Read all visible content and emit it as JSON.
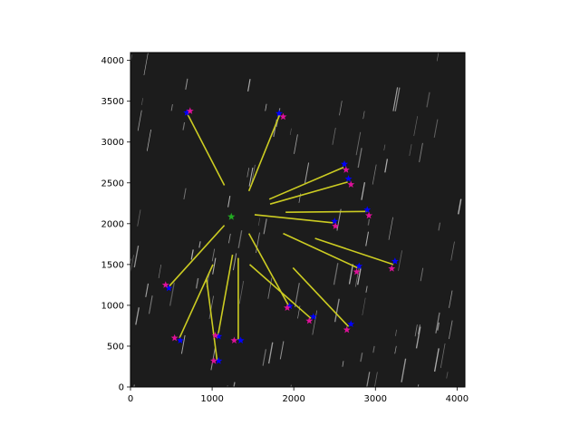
{
  "chart_data": {
    "type": "scatter",
    "title": "",
    "xlabel": "",
    "ylabel": "",
    "xlim": [
      0,
      4096
    ],
    "ylim": [
      0,
      4096
    ],
    "x_ticks": [
      0,
      1000,
      2000,
      3000,
      4000
    ],
    "y_ticks": [
      0,
      500,
      1000,
      1500,
      2000,
      2500,
      3000,
      3500,
      4000
    ],
    "grid": false,
    "legend": "none",
    "background": "#1c1c1c",
    "center": {
      "x": 1235,
      "y": 2085,
      "marker": "star",
      "color": "#22aa22"
    },
    "series": [
      {
        "marker": "star",
        "color": "#0000ff",
        "points": [
          {
            "x": 690,
            "y": 3360
          },
          {
            "x": 1820,
            "y": 3350
          },
          {
            "x": 2620,
            "y": 2730
          },
          {
            "x": 2670,
            "y": 2550
          },
          {
            "x": 2900,
            "y": 2170
          },
          {
            "x": 2500,
            "y": 2030
          },
          {
            "x": 3240,
            "y": 1540
          },
          {
            "x": 2800,
            "y": 1480
          },
          {
            "x": 470,
            "y": 1210
          },
          {
            "x": 1950,
            "y": 990
          },
          {
            "x": 2240,
            "y": 860
          },
          {
            "x": 2700,
            "y": 770
          },
          {
            "x": 1080,
            "y": 620
          },
          {
            "x": 1350,
            "y": 570
          },
          {
            "x": 610,
            "y": 570
          },
          {
            "x": 1080,
            "y": 320
          }
        ]
      },
      {
        "marker": "star",
        "color": "#dd1199",
        "points": [
          {
            "x": 730,
            "y": 3380
          },
          {
            "x": 1870,
            "y": 3310
          },
          {
            "x": 2640,
            "y": 2660
          },
          {
            "x": 2700,
            "y": 2480
          },
          {
            "x": 2920,
            "y": 2100
          },
          {
            "x": 2510,
            "y": 1970
          },
          {
            "x": 3200,
            "y": 1450
          },
          {
            "x": 2770,
            "y": 1410
          },
          {
            "x": 430,
            "y": 1250
          },
          {
            "x": 1920,
            "y": 970
          },
          {
            "x": 2190,
            "y": 810
          },
          {
            "x": 2650,
            "y": 700
          },
          {
            "x": 1040,
            "y": 630
          },
          {
            "x": 1270,
            "y": 570
          },
          {
            "x": 540,
            "y": 600
          },
          {
            "x": 1020,
            "y": 320
          }
        ]
      }
    ],
    "line_color": "#cccc22",
    "lines": [
      {
        "x1": 700,
        "y1": 3340,
        "x2": 1150,
        "y2": 2470
      },
      {
        "x1": 1830,
        "y1": 3340,
        "x2": 1450,
        "y2": 2400
      },
      {
        "x1": 2610,
        "y1": 2690,
        "x2": 1700,
        "y2": 2300
      },
      {
        "x1": 2660,
        "y1": 2510,
        "x2": 1710,
        "y2": 2240
      },
      {
        "x1": 2900,
        "y1": 2150,
        "x2": 1900,
        "y2": 2140
      },
      {
        "x1": 2490,
        "y1": 2010,
        "x2": 1520,
        "y2": 2110
      },
      {
        "x1": 3220,
        "y1": 1500,
        "x2": 2260,
        "y2": 1820
      },
      {
        "x1": 2780,
        "y1": 1460,
        "x2": 1870,
        "y2": 1880
      },
      {
        "x1": 470,
        "y1": 1230,
        "x2": 1150,
        "y2": 1980
      },
      {
        "x1": 1940,
        "y1": 990,
        "x2": 1450,
        "y2": 1880
      },
      {
        "x1": 2210,
        "y1": 840,
        "x2": 1460,
        "y2": 1500
      },
      {
        "x1": 2670,
        "y1": 740,
        "x2": 1990,
        "y2": 1460
      },
      {
        "x1": 1070,
        "y1": 620,
        "x2": 1250,
        "y2": 1620
      },
      {
        "x1": 1320,
        "y1": 580,
        "x2": 1320,
        "y2": 1580
      },
      {
        "x1": 600,
        "y1": 600,
        "x2": 1010,
        "y2": 1500
      },
      {
        "x1": 1060,
        "y1": 330,
        "x2": 930,
        "y2": 1330
      }
    ]
  }
}
